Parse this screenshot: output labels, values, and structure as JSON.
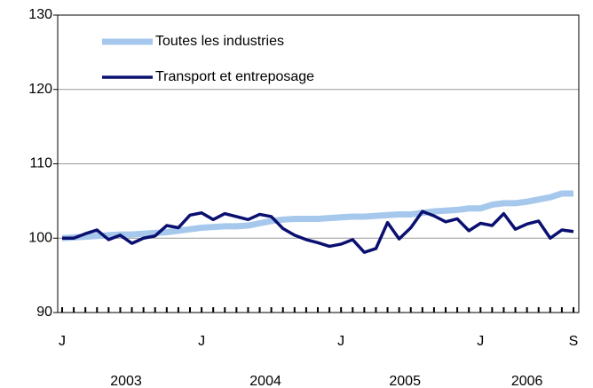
{
  "chart_data": {
    "type": "line",
    "categories": [
      "J",
      null,
      null,
      null,
      null,
      null,
      null,
      null,
      null,
      null,
      null,
      null,
      "J",
      null,
      null,
      null,
      null,
      null,
      null,
      null,
      null,
      null,
      null,
      null,
      "J",
      null,
      null,
      null,
      null,
      null,
      null,
      null,
      null,
      null,
      null,
      null,
      "J",
      null,
      null,
      null,
      null,
      null,
      null,
      null,
      "S"
    ],
    "years": [
      "2003",
      "2004",
      "2005",
      "2006"
    ],
    "series": [
      {
        "name": "Toutes les industries",
        "color": "#a6c8ec",
        "values": [
          100,
          100.1,
          100.2,
          100.3,
          100.4,
          100.5,
          100.5,
          100.6,
          100.7,
          100.8,
          101,
          101.2,
          101.4,
          101.5,
          101.6,
          101.6,
          101.7,
          102,
          102.3,
          102.5,
          102.6,
          102.6,
          102.6,
          102.7,
          102.8,
          102.9,
          102.9,
          103,
          103.1,
          103.2,
          103.2,
          103.4,
          103.6,
          103.7,
          103.8,
          104,
          104,
          104.5,
          104.7,
          104.7,
          104.9,
          105.2,
          105.5,
          106,
          106
        ]
      },
      {
        "name": "Transport et entreposage",
        "color": "#0a1070",
        "values": [
          100,
          100,
          100.6,
          101.1,
          99.8,
          100.4,
          99.3,
          100,
          100.3,
          101.7,
          101.4,
          103.1,
          103.4,
          102.5,
          103.3,
          102.9,
          102.5,
          103.2,
          102.9,
          101.3,
          100.4,
          99.8,
          99.4,
          98.9,
          99.2,
          99.8,
          98.1,
          98.6,
          102.1,
          99.9,
          101.4,
          103.6,
          103,
          102.2,
          102.6,
          101,
          102,
          101.7,
          103.3,
          101.2,
          101.9,
          102.3,
          100,
          101.1,
          100.9
        ]
      }
    ],
    "ylim": [
      90,
      130
    ],
    "yticks": [
      90,
      100,
      110,
      120,
      130
    ],
    "grid": true,
    "legend": "upper left"
  }
}
